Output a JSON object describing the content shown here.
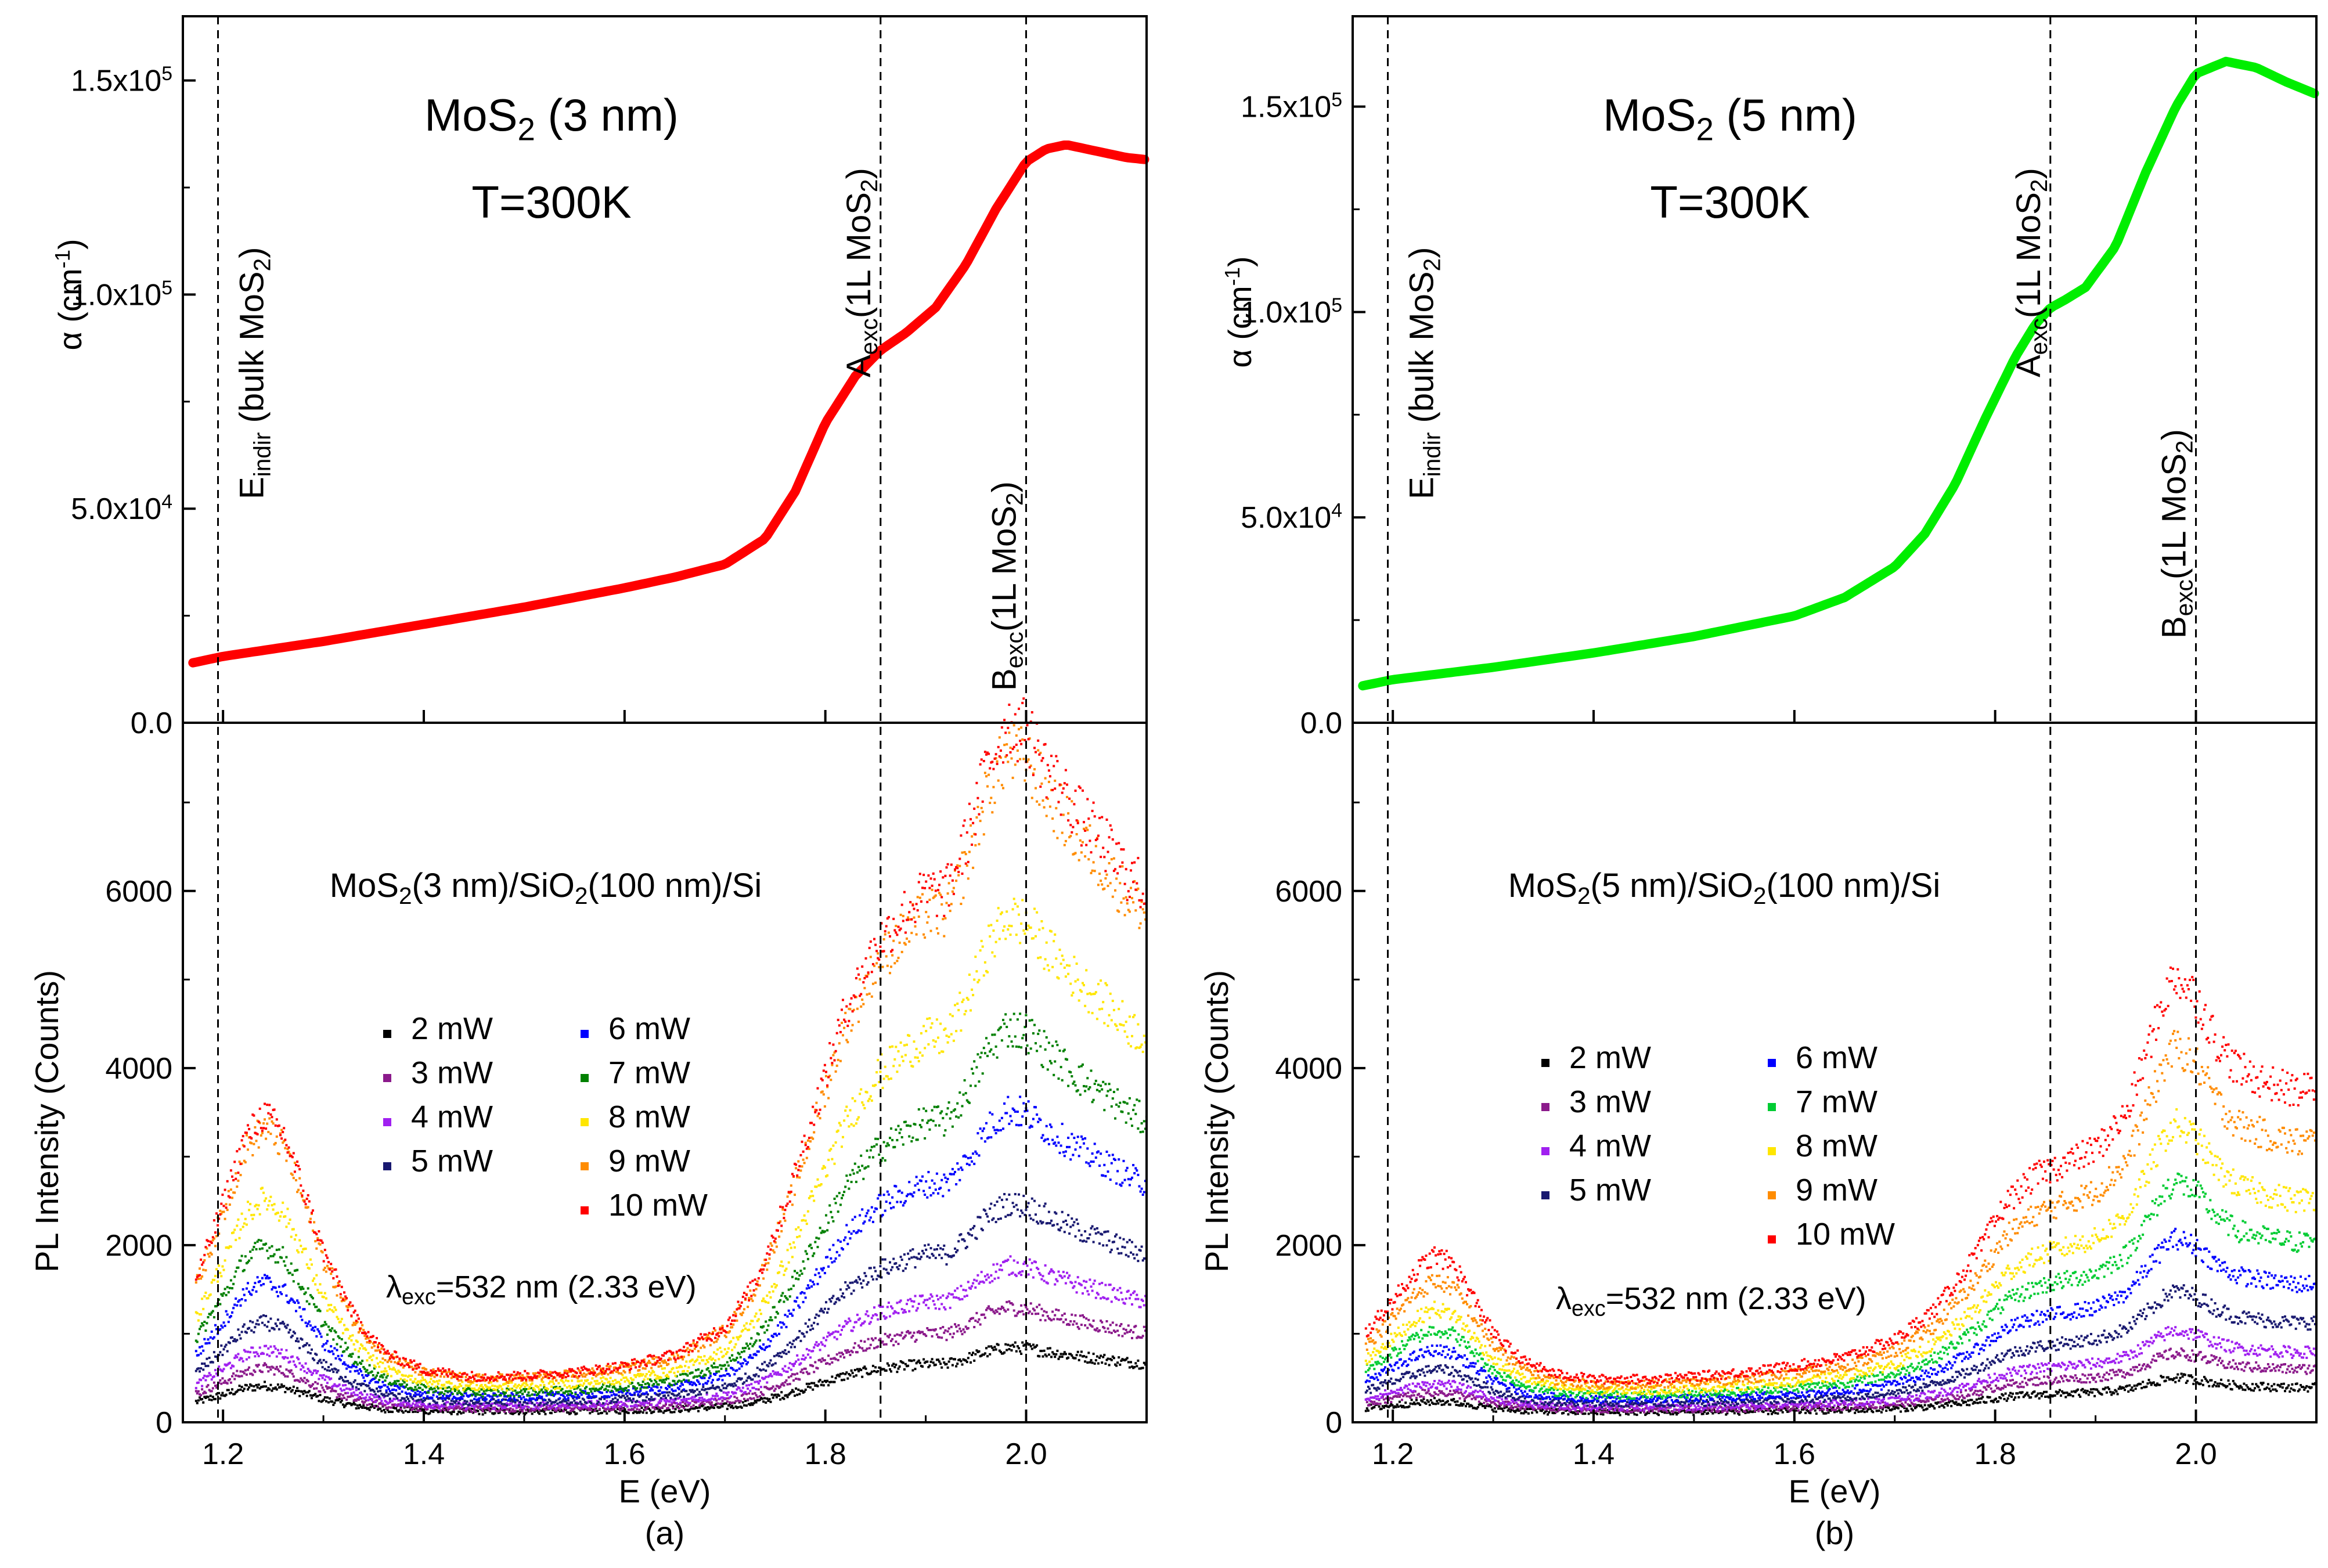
{
  "chart_data": [
    {
      "type": "line",
      "panel": "a",
      "panel_label": "(a)",
      "absorption": {
        "title_main": "MoS",
        "title_sub": "2",
        "title_rest": " (3 nm)",
        "temperature": "T=300K",
        "ylabel": "α (cm",
        "ylabel_sup": "-1",
        "ylabel_close": ")",
        "ylim": [
          0,
          165000
        ],
        "y_ticks": [
          {
            "value": 0,
            "mant": "0.0",
            "exp": ""
          },
          {
            "value": 50000,
            "mant": "5.0x10",
            "exp": "4"
          },
          {
            "value": 100000,
            "mant": "1.0x10",
            "exp": "5"
          },
          {
            "value": 150000,
            "mant": "1.5x10",
            "exp": "5"
          }
        ],
        "color": "#ff0000",
        "series": {
          "name": "",
          "x": [
            1.17,
            1.2,
            1.3,
            1.4,
            1.5,
            1.6,
            1.65,
            1.7,
            1.74,
            1.77,
            1.8,
            1.83,
            1.855,
            1.88,
            1.91,
            1.94,
            1.97,
            2.0,
            2.02,
            2.04,
            2.07,
            2.1,
            2.12
          ],
          "y": [
            14000,
            15500,
            19000,
            23000,
            27000,
            31500,
            34000,
            37000,
            43000,
            54000,
            70000,
            81000,
            87000,
            91000,
            97000,
            107000,
            120000,
            131000,
            134000,
            135000,
            133500,
            132000,
            131500
          ]
        }
      },
      "pl": {
        "title_main": "MoS",
        "title_sub": "2",
        "title_rest": "(3 nm)/SiO",
        "title_sub2": "2",
        "title_end": "(100 nm)/Si",
        "excitation_main": "λ",
        "excitation_sub": "exc",
        "excitation_rest": "=532 nm (2.33 eV)",
        "ylabel": "PL Intensity (Counts)",
        "xlabel": "E (eV)",
        "ylim": [
          0,
          7900
        ],
        "y_ticks": [
          0,
          2000,
          4000,
          6000
        ],
        "series": [
          {
            "name": "2 mW",
            "color": "#000000",
            "scale": 0.098
          },
          {
            "name": "3 mW",
            "color": "#8b1a8b",
            "scale": 0.155
          },
          {
            "name": "4 mW",
            "color": "#a020f0",
            "scale": 0.215
          },
          {
            "name": "5 mW",
            "color": "#191970",
            "scale": 0.305
          },
          {
            "name": "6 mW",
            "color": "#0000ff",
            "scale": 0.44
          },
          {
            "name": "7 mW",
            "color": "#008000",
            "scale": 0.56
          },
          {
            "name": "8 mW",
            "color": "#ffe600",
            "scale": 0.72
          },
          {
            "name": "9 mW",
            "color": "#ff8c00",
            "scale": 0.96
          },
          {
            "name": "10 mW",
            "color": "#ff0000",
            "scale": 1.0
          }
        ],
        "base_shape": {
          "x": [
            1.17,
            1.2,
            1.22,
            1.24,
            1.26,
            1.28,
            1.3,
            1.33,
            1.36,
            1.4,
            1.45,
            1.5,
            1.55,
            1.6,
            1.65,
            1.7,
            1.73,
            1.76,
            1.79,
            1.82,
            1.85,
            1.88,
            1.9,
            1.92,
            1.94,
            1.96,
            1.98,
            2.0,
            2.02,
            2.05,
            2.08,
            2.1,
            2.12
          ],
          "y": [
            1350,
            2300,
            3000,
            3300,
            3050,
            2400,
            1700,
            1000,
            600,
            400,
            330,
            340,
            380,
            450,
            580,
            900,
            1400,
            2300,
            3400,
            4500,
            5200,
            5600,
            5800,
            5800,
            6400,
            7200,
            7700,
            7600,
            7200,
            6700,
            6300,
            6000,
            5800
          ]
        }
      },
      "xlabel": "E (eV)",
      "xlim": [
        1.16,
        2.12
      ],
      "x_ticks": [
        "1.2",
        "1.4",
        "1.6",
        "1.8",
        "2.0"
      ],
      "vlines": [
        1.195,
        1.855,
        2.0
      ],
      "vline_labels": [
        {
          "main": "E",
          "sub": "indir",
          "rest": " (bulk MoS",
          "sub2": "2",
          "end": ")"
        },
        {
          "main": "A",
          "sub": "exc",
          "rest": "(1L MoS",
          "sub2": "2",
          "end": ")"
        },
        {
          "main": "B",
          "sub": "exc",
          "rest": "(1L MoS",
          "sub2": "2",
          "end": ")"
        }
      ]
    },
    {
      "type": "line",
      "panel": "b",
      "panel_label": "(b)",
      "absorption": {
        "title_main": "MoS",
        "title_sub": "2",
        "title_rest": " (5 nm)",
        "temperature": "T=300K",
        "ylabel": "α (cm",
        "ylabel_sup": "-1",
        "ylabel_close": ")",
        "ylim": [
          0,
          172000
        ],
        "y_ticks": [
          {
            "value": 0,
            "mant": "0.0",
            "exp": ""
          },
          {
            "value": 50000,
            "mant": "5.0x10",
            "exp": "4"
          },
          {
            "value": 100000,
            "mant": "1.0x10",
            "exp": "5"
          },
          {
            "value": 150000,
            "mant": "1.5x10",
            "exp": "5"
          }
        ],
        "color": "#00ee00",
        "series": {
          "name": "",
          "x": [
            1.17,
            1.2,
            1.3,
            1.4,
            1.5,
            1.6,
            1.65,
            1.7,
            1.73,
            1.76,
            1.79,
            1.82,
            1.84,
            1.855,
            1.87,
            1.89,
            1.92,
            1.95,
            1.98,
            2.0,
            2.03,
            2.06,
            2.09,
            2.12
          ],
          "y": [
            9000,
            10500,
            13500,
            17000,
            21000,
            26000,
            30500,
            38000,
            46000,
            58000,
            74000,
            89000,
            97000,
            101000,
            103000,
            106000,
            116000,
            134000,
            150000,
            158000,
            161000,
            159500,
            156000,
            153000
          ]
        }
      },
      "pl": {
        "title_main": "MoS",
        "title_sub": "2",
        "title_rest": "(5 nm)/SiO",
        "title_sub2": "2",
        "title_end": "(100 nm)/Si",
        "excitation_main": "λ",
        "excitation_sub": "exc",
        "excitation_rest": "=532 nm (2.33 eV)",
        "ylabel": "PL Intensity (Counts)",
        "xlabel": "E (eV)",
        "ylim": [
          0,
          7900
        ],
        "y_ticks": [
          0,
          2000,
          4000,
          6000
        ],
        "series": [
          {
            "name": "2 mW",
            "color": "#000000",
            "scale": 0.085
          },
          {
            "name": "3 mW",
            "color": "#8b1a8b",
            "scale": 0.14
          },
          {
            "name": "4 mW",
            "color": "#a020f0",
            "scale": 0.19
          },
          {
            "name": "5 mW",
            "color": "#191970",
            "scale": 0.28
          },
          {
            "name": "6 mW",
            "color": "#0000ff",
            "scale": 0.4
          },
          {
            "name": "7 mW",
            "color": "#00cc33",
            "scale": 0.53
          },
          {
            "name": "8 mW",
            "color": "#ffe600",
            "scale": 0.66
          },
          {
            "name": "9 mW",
            "color": "#ff8c00",
            "scale": 0.84
          },
          {
            "name": "10 mW",
            "color": "#ff0000",
            "scale": 1.0
          }
        ],
        "base_shape": {
          "x": [
            1.17,
            1.2,
            1.22,
            1.24,
            1.26,
            1.28,
            1.3,
            1.33,
            1.36,
            1.4,
            1.45,
            1.5,
            1.55,
            1.6,
            1.65,
            1.7,
            1.74,
            1.78,
            1.81,
            1.84,
            1.87,
            1.9,
            1.93,
            1.95,
            1.97,
            1.98,
            2.0,
            2.02,
            2.04,
            2.07,
            2.1,
            2.12
          ],
          "y": [
            800,
            1200,
            1500,
            1700,
            1600,
            1200,
            800,
            500,
            360,
            300,
            300,
            330,
            380,
            450,
            550,
            750,
            1100,
            1700,
            2300,
            2600,
            2750,
            2900,
            3300,
            4000,
            4700,
            4850,
            4600,
            4100,
            3800,
            3650,
            3550,
            3600
          ]
        }
      },
      "xlabel": "E (eV)",
      "xlim": [
        1.16,
        2.12
      ],
      "x_ticks": [
        "1.2",
        "1.4",
        "1.6",
        "1.8",
        "2.0"
      ],
      "vlines": [
        1.195,
        1.855,
        2.0
      ],
      "vline_labels": [
        {
          "main": "E",
          "sub": "indir",
          "rest": " (bulk MoS",
          "sub2": "2",
          "end": ")"
        },
        {
          "main": "A",
          "sub": "exc",
          "rest": "(1L MoS",
          "sub2": "2",
          "end": ")"
        },
        {
          "main": "B",
          "sub": "exc",
          "rest": "(1L MoS",
          "sub2": "2",
          "end": ")"
        }
      ]
    }
  ]
}
